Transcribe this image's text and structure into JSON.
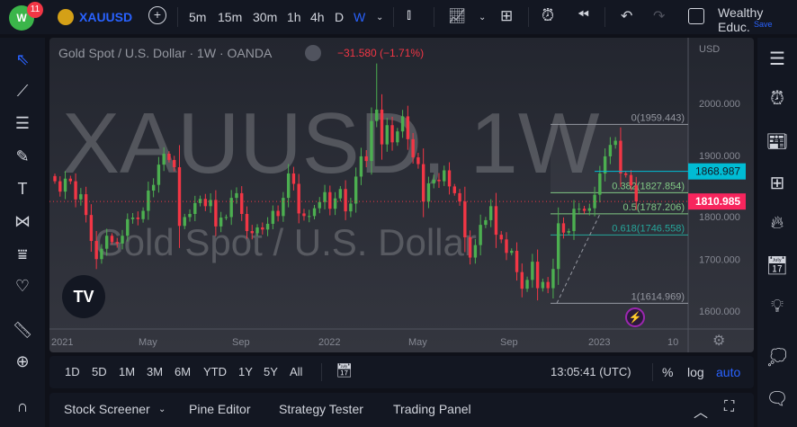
{
  "topbar": {
    "notification_count": "11",
    "symbol": "XAUUSD",
    "intervals": [
      "5m",
      "15m",
      "30m",
      "1h",
      "4h",
      "D",
      "W"
    ],
    "active_interval": "W",
    "layout_name": "Wealthy Educ.",
    "save_label": "Save"
  },
  "legend": {
    "title": "Gold Spot / U.S. Dollar · 1W · OANDA",
    "change": "−31.580 (−1.71%)"
  },
  "watermark": {
    "line1": "XAUUSD, 1W",
    "line2": "Gold Spot / U.S. Dollar"
  },
  "price_axis": {
    "currency": "USD",
    "ticks": [
      "2000.000",
      "1900.000",
      "1800.000",
      "1700.000",
      "1600.000"
    ],
    "tick_values": [
      2000,
      1900,
      1800,
      1700,
      1600
    ],
    "marker_cyan": "1868.987",
    "marker_red": "1810.985"
  },
  "time_axis": {
    "labels": [
      "2021",
      "May",
      "Sep",
      "2022",
      "May",
      "Sep",
      "2023",
      "10"
    ]
  },
  "fib": [
    {
      "label": "0(1959.443)",
      "value": 1959.443
    },
    {
      "label": "0.382(1827.854)",
      "value": 1827.854
    },
    {
      "label": "0.5(1787.206)",
      "value": 1787.206
    },
    {
      "label": "0.618(1746.558)",
      "value": 1746.558
    },
    {
      "label": "1(1614.969)",
      "value": 1614.969
    }
  ],
  "rangebar": {
    "ranges": [
      "1D",
      "5D",
      "1M",
      "3M",
      "6M",
      "YTD",
      "1Y",
      "5Y",
      "All"
    ],
    "clock": "13:05:41 (UTC)",
    "percent": "%",
    "log": "log",
    "auto": "auto"
  },
  "bottom": {
    "tabs": [
      "Stock Screener",
      "Pine Editor",
      "Strategy Tester",
      "Trading Panel"
    ]
  },
  "colors": {
    "up": "#4caf50",
    "down": "#f23645",
    "accent": "#2962ff",
    "cyan": "#00bcd4",
    "red_marker": "#f7255d"
  },
  "chart_data": {
    "type": "candlestick",
    "symbol": "XAUUSD",
    "interval": "1W",
    "ylim": [
      1560,
      2100
    ],
    "closes": [
      1850,
      1830,
      1855,
      1850,
      1815,
      1825,
      1785,
      1735,
      1700,
      1720,
      1745,
      1733,
      1730,
      1745,
      1777,
      1780,
      1777,
      1793,
      1832,
      1843,
      1882,
      1903,
      1891,
      1877,
      1764,
      1781,
      1787,
      1808,
      1816,
      1802,
      1814,
      1763,
      1780,
      1781,
      1818,
      1827,
      1787,
      1754,
      1750,
      1761,
      1757,
      1768,
      1793,
      1783,
      1818,
      1865,
      1845,
      1788,
      1783,
      1783,
      1798,
      1810,
      1829,
      1797,
      1817,
      1835,
      1792,
      1807,
      1859,
      1898,
      1889,
      1966,
      1988,
      1921,
      1958,
      1925,
      1946,
      1975,
      1931,
      1896,
      1883,
      1811,
      1846,
      1853,
      1850,
      1871,
      1840,
      1827,
      1811,
      1742,
      1703,
      1727,
      1766,
      1775,
      1802,
      1747,
      1738,
      1712,
      1716,
      1675,
      1643,
      1660,
      1695,
      1644,
      1656,
      1644,
      1681,
      1769,
      1751,
      1754,
      1797,
      1797,
      1793,
      1798,
      1824,
      1865,
      1898,
      1920,
      1928,
      1865,
      1862,
      1842,
      1810.985
    ]
  }
}
